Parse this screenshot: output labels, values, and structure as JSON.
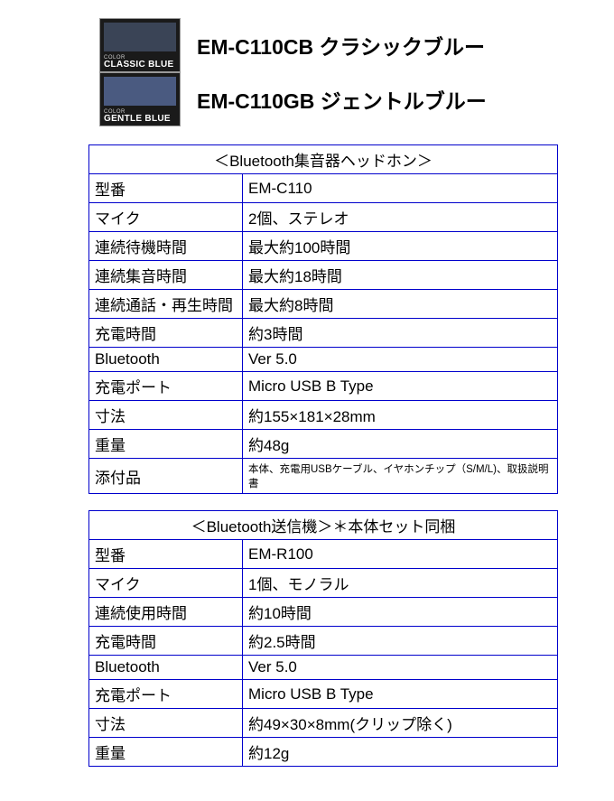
{
  "variants": [
    {
      "swatch_small": "COLOR",
      "swatch_name": "CLASSIC BLUE",
      "swatch_color": "#3a4456",
      "text": "EM-C110CB クラシックブルー"
    },
    {
      "swatch_small": "COLOR",
      "swatch_name": "GENTLE BLUE",
      "swatch_color": "#4a5a80",
      "text": "EM-C110GB ジェントルブルー"
    }
  ],
  "table1": {
    "title": "＜Bluetooth集音器ヘッドホン＞",
    "rows": [
      {
        "label": "型番",
        "value": "EM-C110"
      },
      {
        "label": "マイク",
        "value": "2個、ステレオ"
      },
      {
        "label": "連続待機時間",
        "value": "最大約100時間"
      },
      {
        "label": "連続集音時間",
        "value": "最大約18時間"
      },
      {
        "label": "連続通話・再生時間",
        "value": "最大約8時間"
      },
      {
        "label": "充電時間",
        "value": "約3時間"
      },
      {
        "label": "Bluetooth",
        "value": "Ver 5.0"
      },
      {
        "label": "充電ポート",
        "value": "Micro USB B Type"
      },
      {
        "label": "寸法",
        "value": "約155×181×28mm"
      },
      {
        "label": "重量",
        "value": "約48g"
      },
      {
        "label": "添付品",
        "value": "本体、充電用USBケーブル、イヤホンチップ（S/M/L)、取扱説明書",
        "small": true
      }
    ]
  },
  "table2": {
    "title": "＜Bluetooth送信機＞＊本体セット同梱",
    "rows": [
      {
        "label": "型番",
        "value": "EM-R100"
      },
      {
        "label": "マイク",
        "value": "1個、モノラル"
      },
      {
        "label": "連続使用時間",
        "value": "約10時間"
      },
      {
        "label": "充電時間",
        "value": "約2.5時間"
      },
      {
        "label": "Bluetooth",
        "value": "Ver 5.0"
      },
      {
        "label": "充電ポート",
        "value": "Micro USB B Type"
      },
      {
        "label": "寸法",
        "value": "約49×30×8mm(クリップ除く)"
      },
      {
        "label": "重量",
        "value": "約12g"
      }
    ]
  },
  "colors": {
    "border": "#0000cc",
    "swatch_bg": "#1a1a1a"
  }
}
